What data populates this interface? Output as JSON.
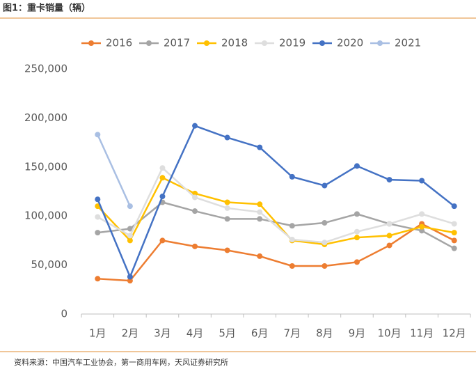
{
  "chart_data": {
    "type": "line",
    "title": "图1：重卡销量（辆）",
    "source": "资料来源：中国汽车工业协会，第一商用车网，天风证券研究所",
    "categories": [
      "1月",
      "2月",
      "3月",
      "4月",
      "5月",
      "6月",
      "7月",
      "8月",
      "9月",
      "10月",
      "11月",
      "12月"
    ],
    "series": [
      {
        "name": "2016",
        "color": "#ed7d31",
        "values": [
          36000,
          34000,
          75000,
          69000,
          65000,
          59000,
          49000,
          49000,
          53000,
          70000,
          92000,
          75000
        ]
      },
      {
        "name": "2017",
        "color": "#a5a5a5",
        "values": [
          83000,
          87000,
          114000,
          105000,
          97000,
          97000,
          90000,
          93000,
          102000,
          92000,
          85000,
          67000
        ]
      },
      {
        "name": "2018",
        "color": "#ffc000",
        "values": [
          110000,
          75000,
          139000,
          123000,
          114000,
          112000,
          75000,
          71000,
          78000,
          80000,
          89000,
          83000
        ]
      },
      {
        "name": "2019",
        "color": "#dedede",
        "values": [
          99000,
          80000,
          149000,
          119000,
          108000,
          104000,
          76000,
          73000,
          84000,
          92000,
          102000,
          92000
        ]
      },
      {
        "name": "2020",
        "color": "#4472c4",
        "values": [
          117000,
          38000,
          120000,
          192000,
          180000,
          170000,
          140000,
          131000,
          151000,
          137000,
          136000,
          110000
        ]
      },
      {
        "name": "2021",
        "color": "#a9bfe3",
        "values": [
          183000,
          110000,
          null,
          null,
          null,
          null,
          null,
          null,
          null,
          null,
          null,
          null
        ]
      }
    ],
    "ylim": [
      0,
      250000
    ],
    "yticks": [
      0,
      {
        "value": 50000,
        "label": "50,000"
      },
      {
        "value": 100000,
        "label": "100,000"
      },
      {
        "value": 150000,
        "label": "150,000"
      },
      {
        "value": 200000,
        "label": "200,000"
      },
      {
        "value": 250000,
        "label": "250,000"
      }
    ],
    "grid": false,
    "legend": "top"
  }
}
